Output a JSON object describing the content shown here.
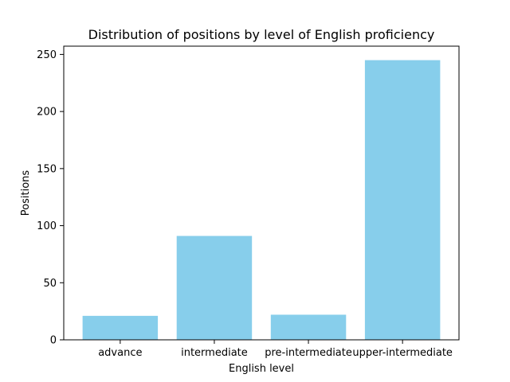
{
  "chart_data": {
    "type": "bar",
    "title": "Distribution of positions by level of English proficiency",
    "xlabel": "English level",
    "ylabel": "Positions",
    "categories": [
      "advance",
      "intermediate",
      "pre-intermediate",
      "upper-intermediate"
    ],
    "values": [
      21,
      91,
      22,
      245
    ],
    "ylim": [
      0,
      257.25
    ],
    "yticks": [
      0,
      50,
      100,
      150,
      200,
      250
    ],
    "grid": false,
    "legend": "none",
    "bar_color": "#87CEEB"
  }
}
